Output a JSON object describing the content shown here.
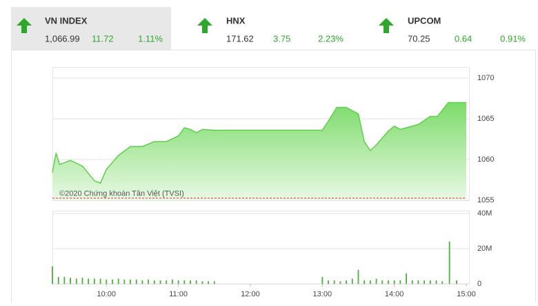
{
  "tiles": [
    {
      "name": "VN INDEX",
      "value": "1,066.99",
      "change": "11.72",
      "percent": "1.11%"
    },
    {
      "name": "HNX",
      "value": "171.62",
      "change": "3.75",
      "percent": "2.23%"
    },
    {
      "name": "UPCOM",
      "value": "70.25",
      "change": "0.64",
      "percent": "0.91%"
    }
  ],
  "chart_data": [
    {
      "type": "area",
      "annotation": "©2020 Chứng khoán Tân Việt (TVSI)",
      "color": "#5ccf4a",
      "reference": 1055.27,
      "reference_color": "#d9302c",
      "grid": true,
      "x": [
        555,
        558,
        561,
        570,
        580,
        590,
        595,
        600,
        610,
        620,
        630,
        640,
        650,
        660,
        665,
        670,
        675,
        680,
        690,
        780,
        785,
        792,
        800,
        810,
        815,
        820,
        825,
        835,
        840,
        845,
        850,
        860,
        870,
        876,
        885,
        887,
        900
      ],
      "values": [
        1058.4,
        1060.8,
        1059.4,
        1059.9,
        1059.2,
        1057.4,
        1057.1,
        1058.8,
        1060.5,
        1061.6,
        1061.6,
        1062.2,
        1062.2,
        1062.9,
        1063.9,
        1063.7,
        1063.3,
        1063.7,
        1063.6,
        1063.6,
        1064.7,
        1066.4,
        1066.4,
        1065.6,
        1062.2,
        1061.1,
        1061.8,
        1063.5,
        1064.1,
        1063.7,
        1063.9,
        1064.3,
        1065.3,
        1065.3,
        1066.99,
        1066.99,
        1066.99
      ],
      "xlim": [
        555,
        900
      ],
      "ylim": [
        1055,
        1070
      ],
      "yticks": [
        1055,
        1060,
        1065,
        1070
      ]
    },
    {
      "type": "bar",
      "color": "#4caf3a",
      "grid": true,
      "x": [
        555,
        560,
        565,
        570,
        575,
        580,
        585,
        590,
        595,
        600,
        605,
        610,
        615,
        620,
        625,
        630,
        635,
        640,
        645,
        650,
        655,
        660,
        665,
        670,
        675,
        680,
        685,
        690,
        780,
        785,
        790,
        795,
        800,
        805,
        810,
        815,
        820,
        825,
        830,
        835,
        840,
        845,
        850,
        855,
        860,
        865,
        870,
        875,
        880,
        886,
        892
      ],
      "values": [
        10000000,
        4000000,
        4000000,
        3500000,
        3000000,
        3500000,
        3000000,
        3000000,
        3000000,
        2500000,
        2500000,
        3000000,
        2500000,
        2500000,
        2500000,
        2000000,
        2500000,
        2000000,
        2000000,
        2000000,
        2500000,
        2000000,
        2000000,
        2000000,
        2000000,
        1500000,
        1500000,
        1500000,
        4000000,
        2000000,
        2000000,
        1500000,
        2000000,
        3000000,
        8000000,
        2000000,
        2000000,
        3000000,
        2000000,
        2000000,
        2000000,
        2000000,
        6000000,
        2000000,
        2000000,
        2000000,
        2000000,
        2000000,
        1500000,
        24000000,
        2000000
      ],
      "xlim": [
        555,
        900
      ],
      "ylim": [
        0,
        40000000
      ],
      "yticks": [
        0,
        {
          "value": 20000000,
          "label": "20M"
        },
        {
          "value": 40000000,
          "label": "40M"
        }
      ],
      "xticks": [
        {
          "value": 600,
          "label": "10:00"
        },
        {
          "value": 660,
          "label": "11:00"
        },
        {
          "value": 720,
          "label": "12:00"
        },
        {
          "value": 780,
          "label": "13:00"
        },
        {
          "value": 840,
          "label": "14:00"
        },
        {
          "value": 900,
          "label": "15:00"
        }
      ]
    }
  ]
}
